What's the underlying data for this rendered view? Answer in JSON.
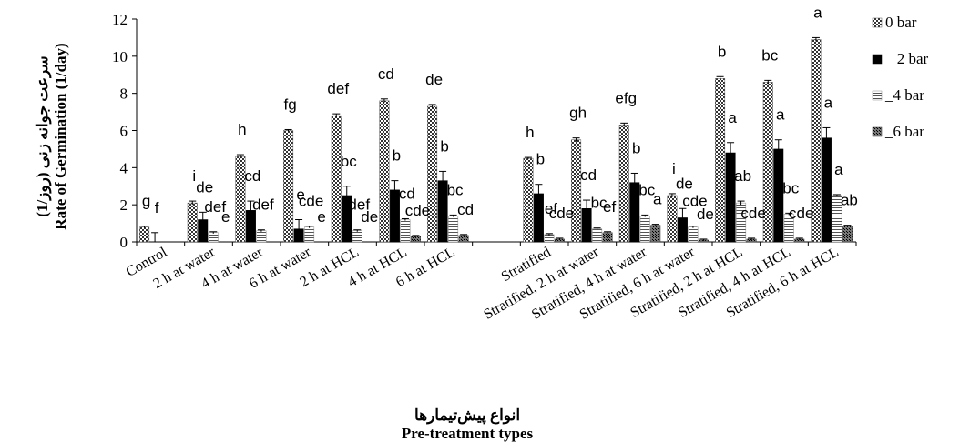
{
  "chart_data": {
    "type": "bar",
    "categories": [
      "Control",
      "2 h at water",
      "4 h at water",
      "6 h at water",
      "2 h at HCL",
      "4 h at HCL",
      "6 h at HCL",
      "",
      "Stratified",
      "Stratified, 2 h at water",
      "Stratified, 4 h at water",
      "Stratified, 6 h at water",
      "Stratified, 2 h at HCL",
      "Stratified, 4 h at HCL",
      "Stratified, 6 h at  HCL"
    ],
    "series": [
      {
        "name": "0 bar",
        "values": [
          0.8,
          2.1,
          4.6,
          6.0,
          6.8,
          7.6,
          7.3,
          null,
          4.5,
          5.5,
          6.3,
          2.5,
          8.8,
          8.6,
          10.9
        ],
        "errors": [
          0.05,
          0.1,
          0.1,
          0.05,
          0.1,
          0.1,
          0.1,
          null,
          0.05,
          0.1,
          0.1,
          0.1,
          0.1,
          0.1,
          0.1
        ],
        "letters": [
          "g",
          "i",
          "h",
          "fg",
          "def",
          "cd",
          "de",
          "",
          "h",
          "gh",
          "efg",
          "i",
          "b",
          "bc",
          "a"
        ]
      },
      {
        "name": "_ 2 bar",
        "values": [
          0.0,
          1.2,
          1.7,
          0.7,
          2.5,
          2.8,
          3.3,
          null,
          2.6,
          1.8,
          3.2,
          1.3,
          4.8,
          5.0,
          5.6
        ],
        "errors": [
          0.5,
          0.4,
          0.5,
          0.5,
          0.5,
          0.5,
          0.5,
          null,
          0.5,
          0.45,
          0.5,
          0.5,
          0.55,
          0.5,
          0.55
        ],
        "letters": [
          "f",
          "de",
          "cd",
          "e",
          "bc",
          "b",
          "b",
          "",
          "b",
          "cd",
          "b",
          "de",
          "a",
          "a",
          "a"
        ]
      },
      {
        "name": "_4 bar",
        "values": [
          0.0,
          0.5,
          0.6,
          0.8,
          0.6,
          1.2,
          1.4,
          null,
          0.4,
          0.7,
          1.4,
          0.8,
          2.1,
          1.5,
          2.5
        ],
        "errors": [
          0,
          0.05,
          0.05,
          0.05,
          0.05,
          0.05,
          0.05,
          null,
          0.05,
          0.05,
          0.05,
          0.05,
          0.1,
          0.05,
          0.05
        ],
        "letters": [
          "",
          "def",
          "def",
          "cde",
          "def",
          "cd",
          "bc",
          "",
          "ef",
          "bc",
          "bc",
          "cde",
          "ab",
          "bc",
          "a"
        ]
      },
      {
        "name": "_6 bar",
        "values": [
          0.0,
          0.0,
          0.0,
          0.0,
          0.0,
          0.3,
          0.35,
          null,
          0.15,
          0.5,
          0.9,
          0.1,
          0.15,
          0.15,
          0.85
        ],
        "errors": [
          0,
          0,
          0,
          0,
          0,
          0.05,
          0.05,
          null,
          0.05,
          0.05,
          0.05,
          0.05,
          0.05,
          0.05,
          0.05
        ],
        "letters": [
          "",
          "e",
          "",
          "e",
          "de",
          "cde",
          "cd",
          "",
          "cde",
          "ef",
          "a",
          "de",
          "cde",
          "cde",
          "ab"
        ]
      }
    ],
    "xlabel_fa": "انواع پیش‌تیمارها",
    "xlabel": "Pre-treatment types",
    "ylabel_fa": "سرعت جوانه زنی (روز/1)",
    "ylabel": "Rate of Germination (1/day)",
    "ylim": [
      0,
      12
    ],
    "yticks": [
      0,
      2,
      4,
      6,
      8,
      10,
      12
    ],
    "grid": false,
    "legend_position": "top-right"
  }
}
